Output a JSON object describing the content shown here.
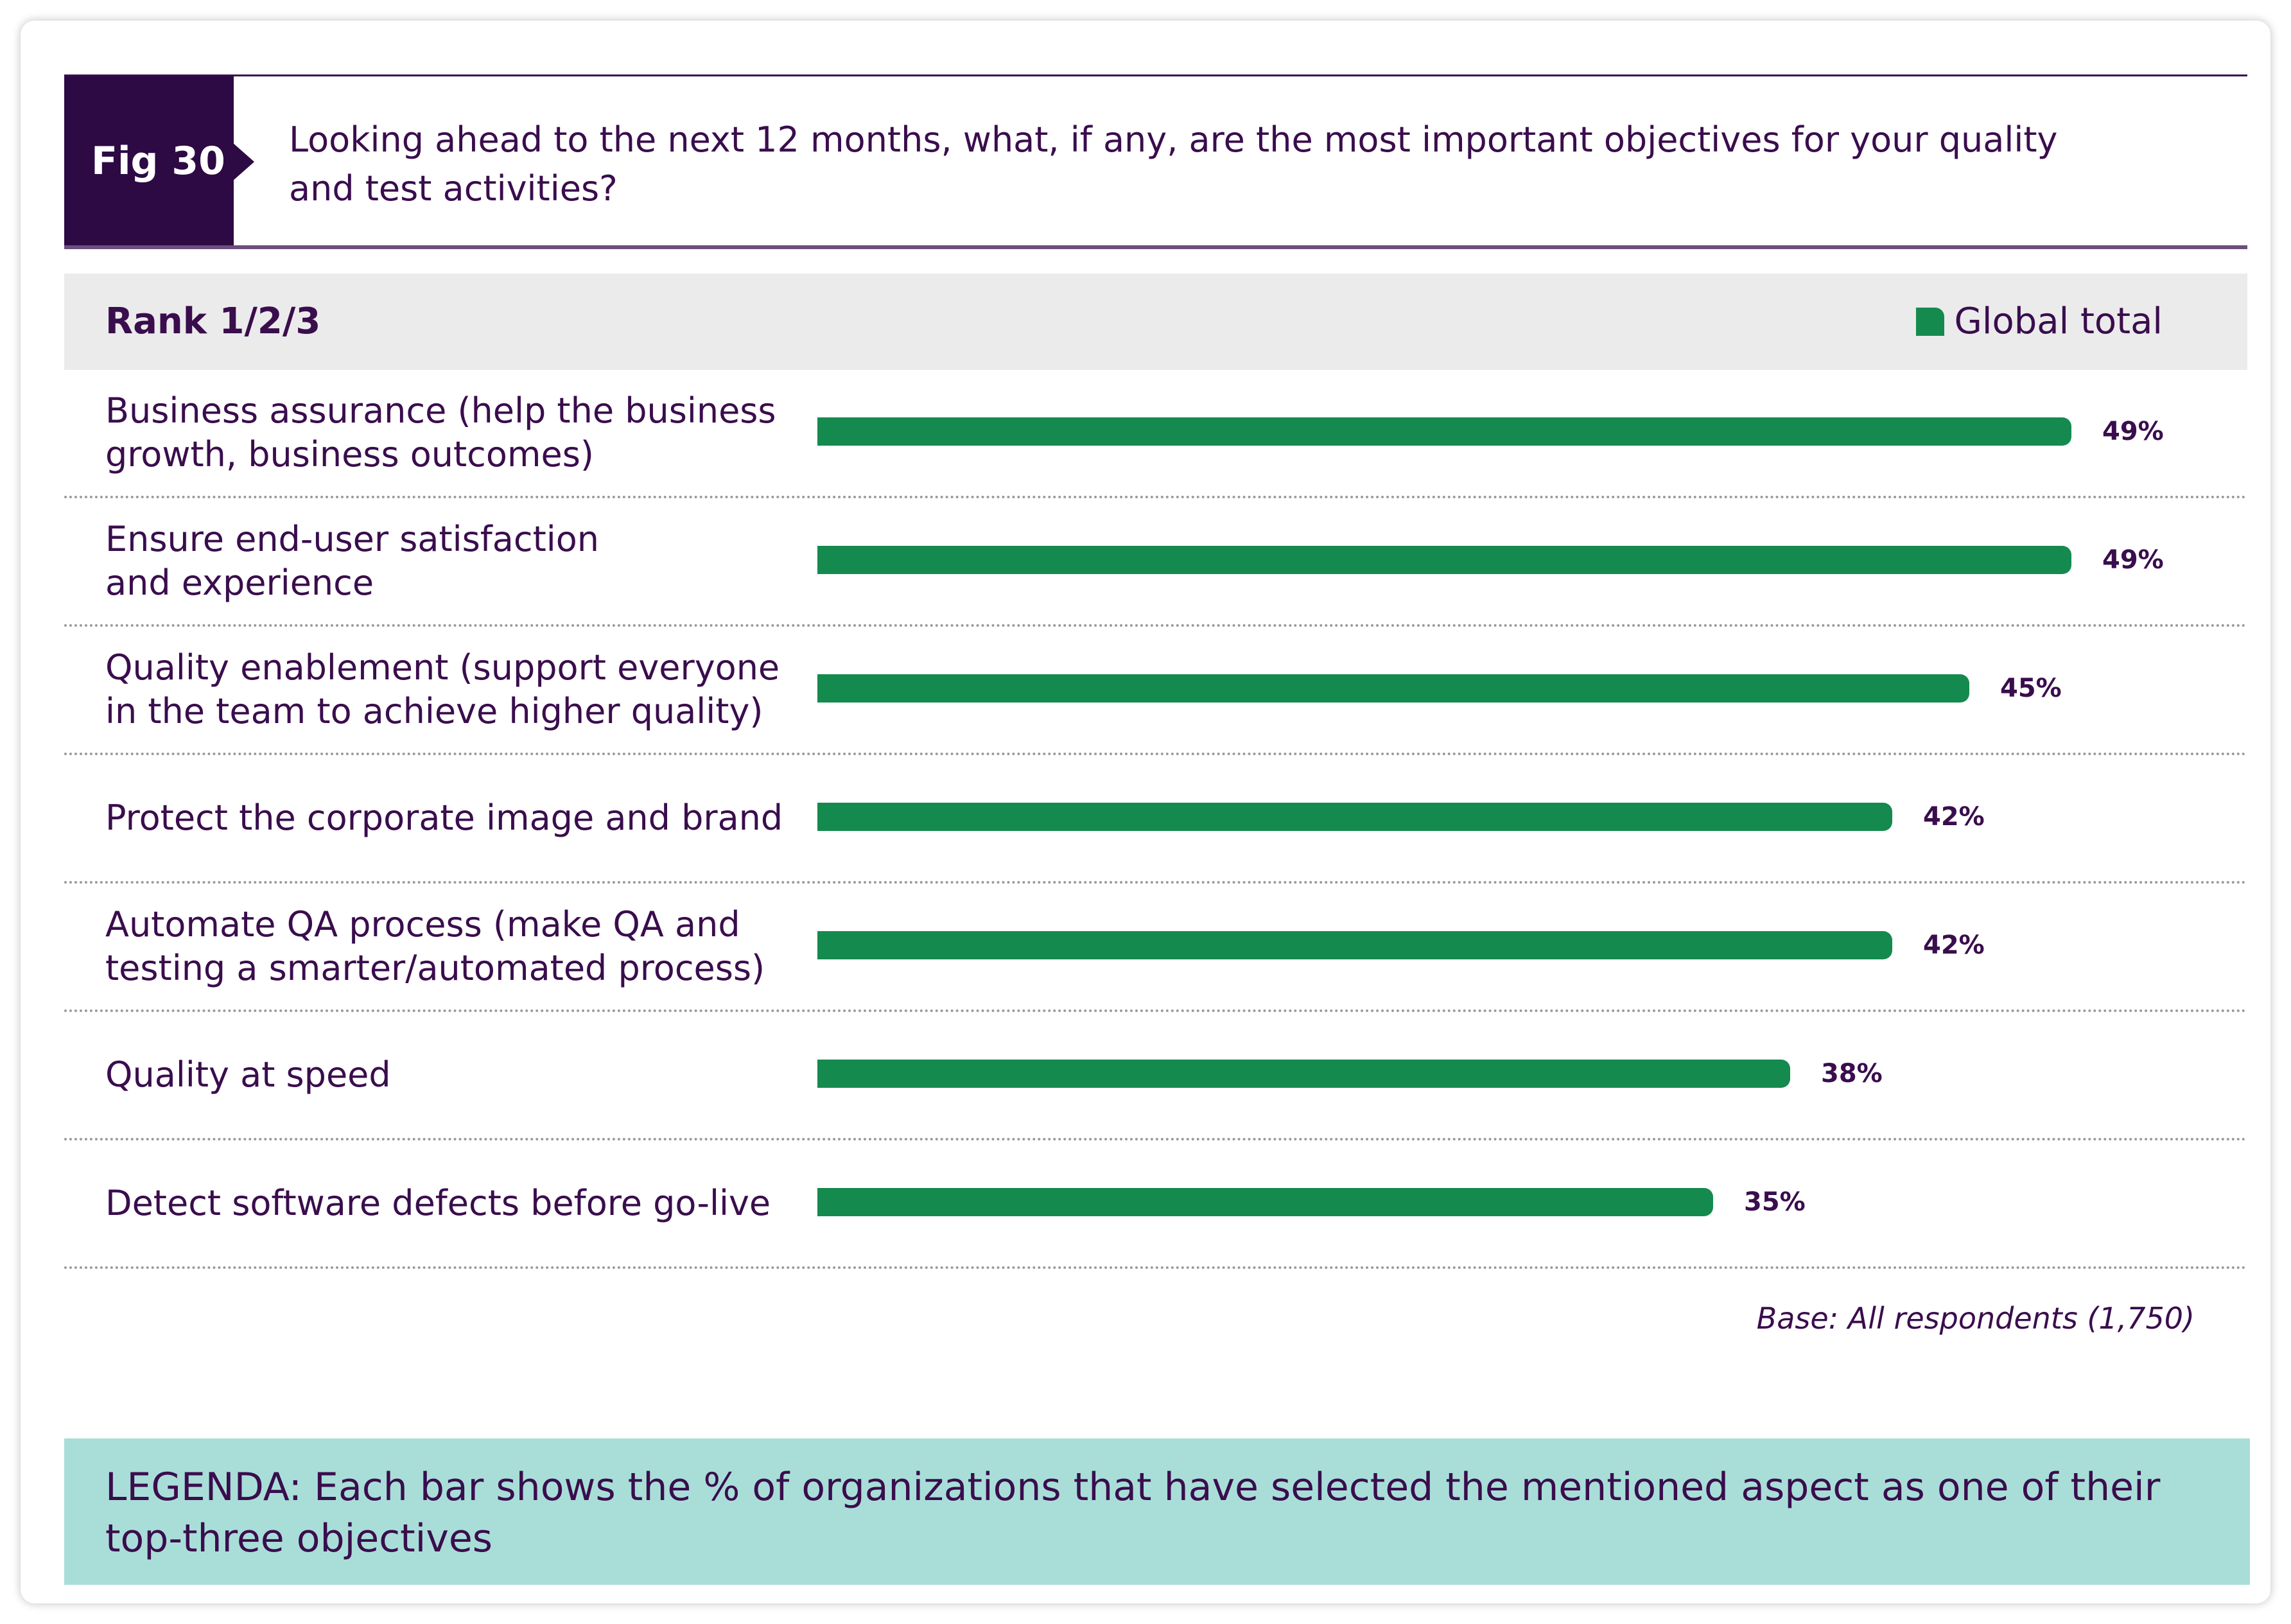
{
  "figure": {
    "tag": "Fig 30",
    "question_line1": "Looking ahead to the next 12 months, what, if any, are the most important objectives for your quality",
    "question_line2": "and test activities?"
  },
  "rank_header": {
    "label": "Rank 1/2/3",
    "legend_label": "Global total"
  },
  "colors": {
    "bar": "#158a4e",
    "header_purple": "#2d0a44",
    "text_purple": "#3a0d4d",
    "legenda_bg": "#a9ded8"
  },
  "chart_data": {
    "type": "bar",
    "orientation": "horizontal",
    "categories": [
      "Business assurance (help the business\ngrowth, business outcomes)",
      "Ensure end-user satisfaction\nand experience",
      "Quality enablement (support everyone\nin the team to achieve higher quality)",
      "Protect the corporate image and brand",
      "Automate QA process (make QA and\ntesting a smarter/automated process)",
      "Quality at speed",
      "Detect software defects before go-live"
    ],
    "series": [
      {
        "name": "Global total",
        "values": [
          49,
          49,
          45,
          42,
          42,
          38,
          35
        ],
        "labels": [
          "49%",
          "49%",
          "45%",
          "42%",
          "42%",
          "38%",
          "35%"
        ]
      }
    ],
    "xlim": [
      0,
      49
    ],
    "grid": false,
    "legend_position": "top-right"
  },
  "base_note": "Base: All respondents (1,750)",
  "legenda": {
    "line1": "LEGENDA: Each bar shows the % of organizations that have selected the mentioned aspect as one of their",
    "line2": "top-three objectives"
  }
}
